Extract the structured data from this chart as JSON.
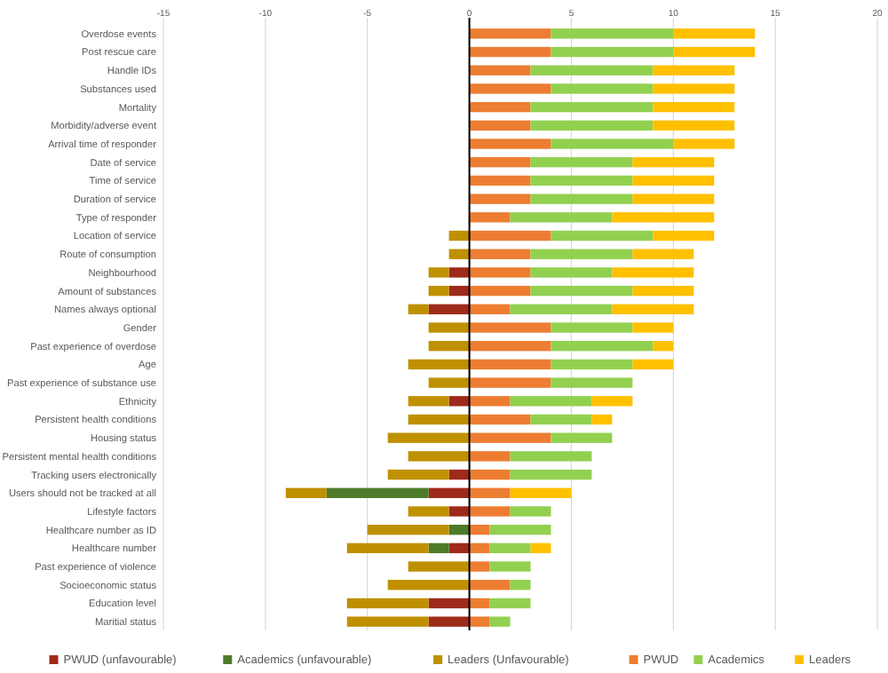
{
  "chart_data": {
    "type": "bar",
    "orientation": "horizontal",
    "stacked": true,
    "categories": [
      "Overdose events",
      "Post rescue care",
      "Handle IDs",
      "Substances used",
      "Mortality",
      "Morbidity/adverse event",
      "Arrival time of responder",
      "Date of service",
      "Time of service",
      "Duration of service",
      "Type of responder",
      "Location of service",
      "Route of consumption",
      "Neighbourhood",
      "Amount of substances",
      "Names always optional",
      "Gender",
      "Past experience of overdose",
      "Age",
      "Past experience of substance use",
      "Ethnicity",
      "Persistent health conditions",
      "Housing status",
      "Persistent mental health conditions",
      "Tracking users electronically",
      "Users should not be tracked at all",
      "Lifestyle factors",
      "Healthcare number as ID",
      "Healthcare number",
      "Past experience of violence",
      "Socioeconomic status",
      "Education level",
      "Maritial status"
    ],
    "series": [
      {
        "name": "PWUD (unfavourable)",
        "color": "#9e2a1a",
        "values": [
          null,
          null,
          null,
          null,
          null,
          null,
          null,
          null,
          null,
          null,
          null,
          null,
          null,
          -1,
          -1,
          -2,
          null,
          null,
          null,
          null,
          -1,
          null,
          null,
          null,
          -1,
          -2,
          -1,
          null,
          -1,
          null,
          null,
          -2,
          -2
        ]
      },
      {
        "name": "Academics (unfavourable)",
        "color": "#4e7a2a",
        "values": [
          null,
          null,
          null,
          null,
          null,
          null,
          null,
          null,
          null,
          null,
          null,
          null,
          null,
          null,
          null,
          null,
          null,
          null,
          null,
          null,
          null,
          null,
          null,
          null,
          null,
          -5,
          null,
          -1,
          -1,
          null,
          null,
          null,
          null
        ]
      },
      {
        "name": "Leaders (Unfavourable)",
        "color": "#bf9000",
        "values": [
          null,
          null,
          null,
          null,
          null,
          null,
          null,
          null,
          null,
          null,
          null,
          -1,
          -1,
          -1,
          -1,
          -1,
          -2,
          -2,
          -3,
          -2,
          -2,
          -3,
          -4,
          -3,
          -3,
          -2,
          -2,
          -4,
          -4,
          -3,
          -4,
          -4,
          -4
        ]
      },
      {
        "name": "PWUD",
        "color": "#ed7d31",
        "values": [
          4,
          4,
          3,
          4,
          3,
          3,
          4,
          3,
          3,
          3,
          2,
          4,
          3,
          3,
          3,
          2,
          4,
          4,
          4,
          4,
          2,
          3,
          4,
          2,
          2,
          2,
          2,
          1,
          1,
          1,
          2,
          1,
          1
        ]
      },
      {
        "name": "Academics",
        "color": "#92d050",
        "values": [
          6,
          6,
          6,
          5,
          6,
          6,
          6,
          5,
          5,
          5,
          5,
          5,
          5,
          4,
          5,
          5,
          4,
          5,
          4,
          4,
          4,
          3,
          3,
          4,
          4,
          null,
          2,
          3,
          2,
          2,
          1,
          2,
          1
        ]
      },
      {
        "name": "Leaders",
        "color": "#ffc000",
        "values": [
          4,
          4,
          4,
          4,
          4,
          4,
          3,
          4,
          4,
          4,
          5,
          3,
          3,
          4,
          3,
          4,
          2,
          1,
          2,
          null,
          2,
          1,
          null,
          null,
          null,
          3,
          null,
          null,
          1,
          null,
          null,
          null,
          null
        ]
      }
    ],
    "xlim": [
      -15,
      20
    ],
    "xticks": [
      -15,
      -10,
      -5,
      0,
      5,
      10,
      15,
      20
    ],
    "grid": "x",
    "legend": "bottom"
  }
}
